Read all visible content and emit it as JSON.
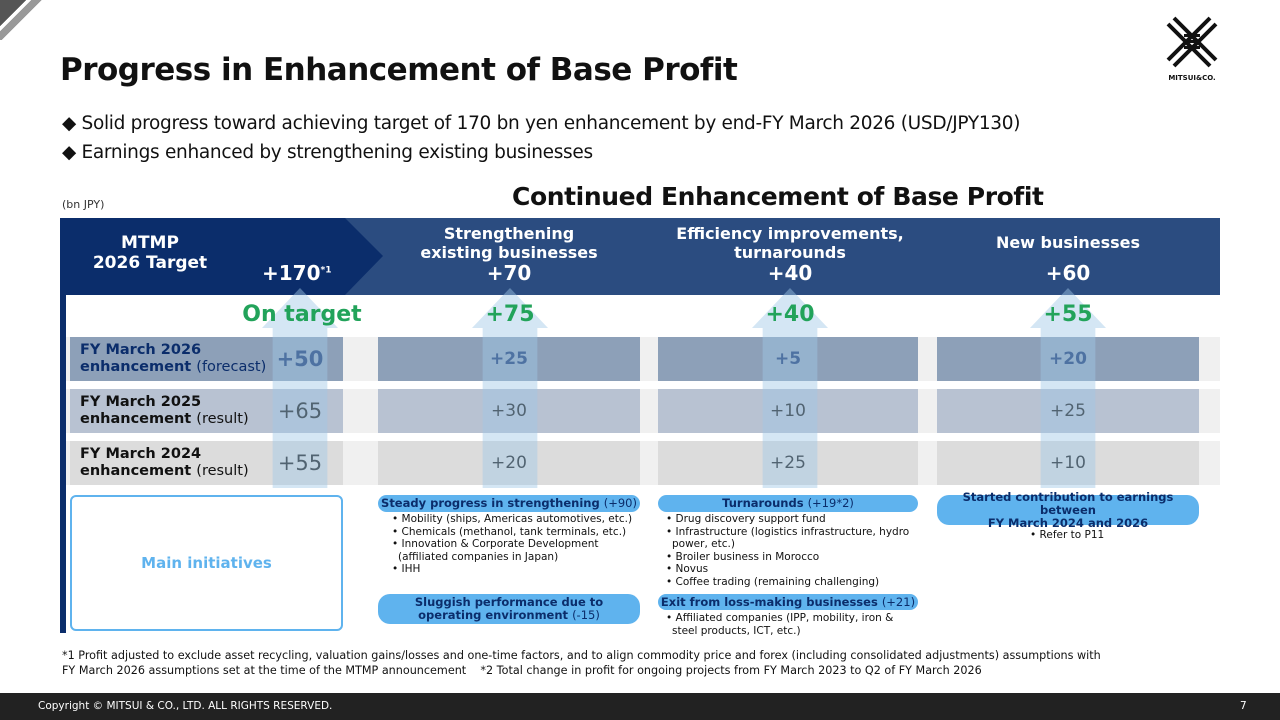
{
  "title": "Progress in Enhancement of Base Profit",
  "bullets": [
    "◆ Solid progress toward achieving target of 170 bn yen enhancement by end-FY March 2026 (USD/JPY130)",
    "◆ Earnings enhanced by strengthening existing businesses"
  ],
  "unit": "(bn JPY)",
  "subtitle": "Continued Enhancement of Base Profit",
  "logo_text": "MITSUI&CO.",
  "header": {
    "target_label_1": "MTMP",
    "target_label_2": "2026 Target",
    "target_value": "+170",
    "target_note": "*1",
    "columns": [
      {
        "line1": "Strengthening",
        "line2": "existing businesses",
        "value": "+70",
        "progress": "+75"
      },
      {
        "line1": "Efficiency improvements,",
        "line2": "turnarounds",
        "value": "+40",
        "progress": "+40"
      },
      {
        "line1": "New businesses",
        "line2": "",
        "value": "+60",
        "progress": "+55"
      }
    ],
    "on_target": "On target"
  },
  "rows": [
    {
      "l1": "FY March 2026",
      "l2": "enhancement",
      "l3": "(forecast)",
      "total": "+50",
      "values": [
        "+25",
        "+5",
        "+20"
      ]
    },
    {
      "l1": "FY March 2025",
      "l2": "enhancement",
      "l3": "(result)",
      "total": "+65",
      "values": [
        "+30",
        "+10",
        "+25"
      ]
    },
    {
      "l1": "FY March 2024",
      "l2": "enhancement",
      "l3": "(result)",
      "total": "+55",
      "values": [
        "+20",
        "+25",
        "+10"
      ]
    }
  ],
  "initiatives": {
    "label": "Main initiatives",
    "steady": {
      "title": "Steady progress in strengthening",
      "amt": "(+90)",
      "items": [
        "Mobility (ships, Americas automotives, etc.)",
        "Chemicals (methanol, tank terminals, etc.)",
        "Innovation & Corporate Development (affiliated companies in Japan)",
        "IHH"
      ]
    },
    "sluggish": {
      "title": "Sluggish performance due to",
      "title2": "operating environment",
      "amt": "(-15)"
    },
    "turnarounds": {
      "title": "Turnarounds",
      "amt": "(+19*2)",
      "items": [
        "Drug discovery support fund",
        "Infrastructure (logistics infrastructure, hydro power, etc.)",
        "Broiler business in Morocco",
        "Novus",
        "Coffee trading (remaining challenging)"
      ]
    },
    "exit": {
      "title": "Exit from loss-making businesses",
      "amt": "(+21)",
      "items": [
        "Affiliated companies (IPP, mobility, iron & steel products, ICT, etc.)"
      ]
    },
    "new": {
      "title": "Started contribution to earnings between",
      "title2": "FY March 2024 and 2026",
      "items": [
        "Refer to P11"
      ]
    }
  },
  "footnotes": [
    "*1 Profit adjusted to exclude asset recycling, valuation gains/losses and one-time factors, and to align commodity price and forex (including consolidated adjustments) assumptions with",
    "FY March 2026 assumptions set at the time of the MTMP announcement    *2 Total change in profit for ongoing projects from FY March 2023 to Q2 of FY March 2026"
  ],
  "copyright": "Copyright © MITSUI & CO., LTD. ALL RIGHTS RESERVED.",
  "page": "7",
  "colors": {
    "navy": "#0b2d6b",
    "header": "#2b4c80",
    "green": "#22a35a",
    "pill": "#5fb3ee"
  }
}
